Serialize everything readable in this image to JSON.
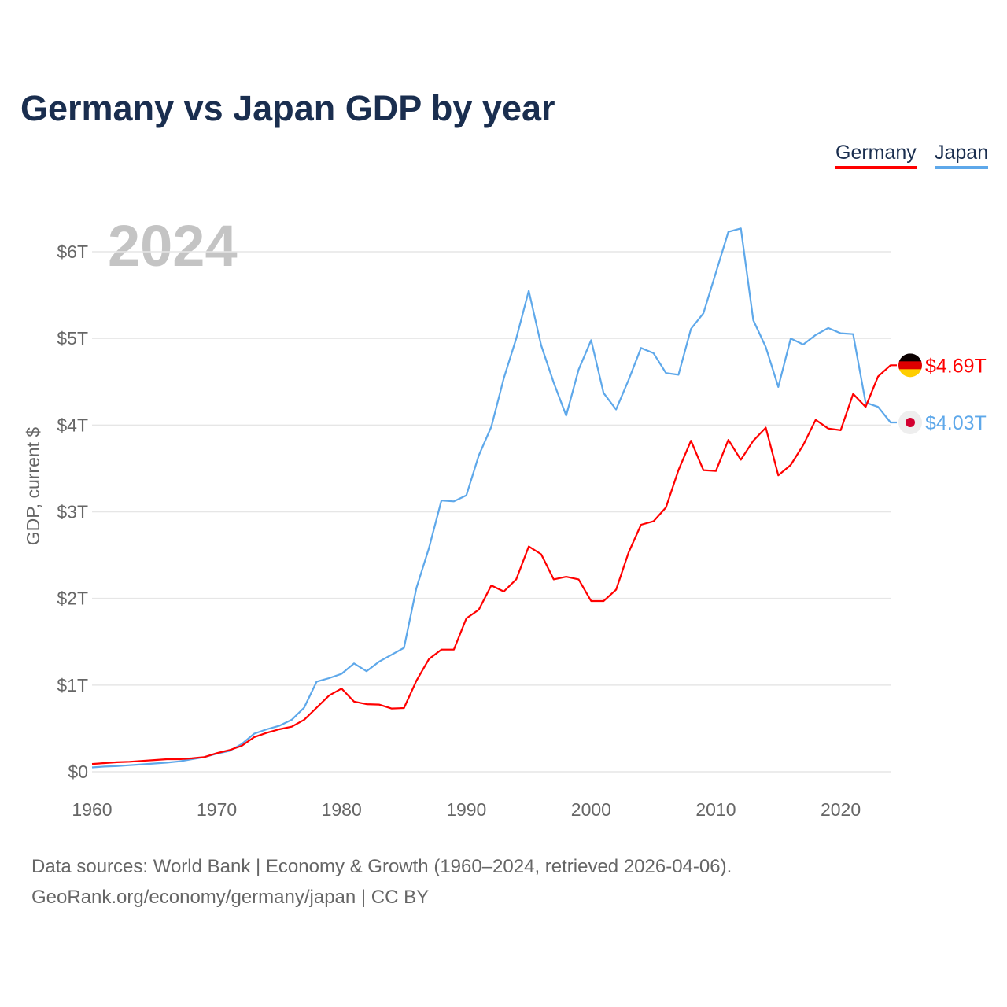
{
  "title": "Germany vs Japan GDP by year",
  "legend": [
    "Germany",
    "Japan"
  ],
  "source_line1": "Data sources: World Bank | Economy & Growth (1960–2024, retrieved 2026-04-06).",
  "source_line2": "GeoRank.org/economy/germany/japan | CC BY",
  "chart_data": {
    "type": "line",
    "title": "Germany vs Japan GDP by year",
    "xlabel": "",
    "ylabel": "GDP, current $",
    "year_label": "2024",
    "xlim": [
      1960,
      2024
    ],
    "ylim": [
      0,
      6
    ],
    "unit": "trillion USD",
    "x_ticks": [
      "1960",
      "1970",
      "1980",
      "1990",
      "2000",
      "2010",
      "2020"
    ],
    "y_ticks": [
      "$0",
      "$1T",
      "$2T",
      "$3T",
      "$4T",
      "$5T",
      "$6T"
    ],
    "legend_position": "top-right",
    "grid": true,
    "x_start": 1960,
    "series": [
      {
        "name": "Germany",
        "color": "#ff0000",
        "end_label": "$4.69T",
        "values": [
          0.09,
          0.1,
          0.11,
          0.115,
          0.125,
          0.135,
          0.145,
          0.145,
          0.155,
          0.17,
          0.215,
          0.25,
          0.3,
          0.4,
          0.45,
          0.49,
          0.52,
          0.6,
          0.74,
          0.88,
          0.96,
          0.81,
          0.78,
          0.775,
          0.73,
          0.735,
          1.05,
          1.3,
          1.41,
          1.41,
          1.77,
          1.87,
          2.15,
          2.08,
          2.22,
          2.6,
          2.51,
          2.22,
          2.25,
          2.22,
          1.97,
          1.97,
          2.1,
          2.53,
          2.85,
          2.89,
          3.05,
          3.48,
          3.82,
          3.48,
          3.47,
          3.83,
          3.6,
          3.82,
          3.97,
          3.42,
          3.54,
          3.77,
          4.06,
          3.96,
          3.94,
          4.36,
          4.21,
          4.56,
          4.69
        ]
      },
      {
        "name": "Japan",
        "color": "#5ea8ea",
        "end_label": "$4.03T",
        "values": [
          0.05,
          0.06,
          0.065,
          0.075,
          0.085,
          0.095,
          0.105,
          0.12,
          0.145,
          0.17,
          0.21,
          0.24,
          0.32,
          0.44,
          0.49,
          0.53,
          0.6,
          0.74,
          1.04,
          1.08,
          1.13,
          1.25,
          1.16,
          1.27,
          1.35,
          1.43,
          2.12,
          2.58,
          3.13,
          3.12,
          3.19,
          3.65,
          3.98,
          4.54,
          5.0,
          5.55,
          4.92,
          4.49,
          4.11,
          4.64,
          4.98,
          4.37,
          4.18,
          4.52,
          4.89,
          4.83,
          4.6,
          4.58,
          5.11,
          5.29,
          5.76,
          6.23,
          6.27,
          5.21,
          4.9,
          4.44,
          5.0,
          4.93,
          5.04,
          5.12,
          5.06,
          5.05,
          4.26,
          4.21,
          4.03
        ]
      }
    ]
  }
}
